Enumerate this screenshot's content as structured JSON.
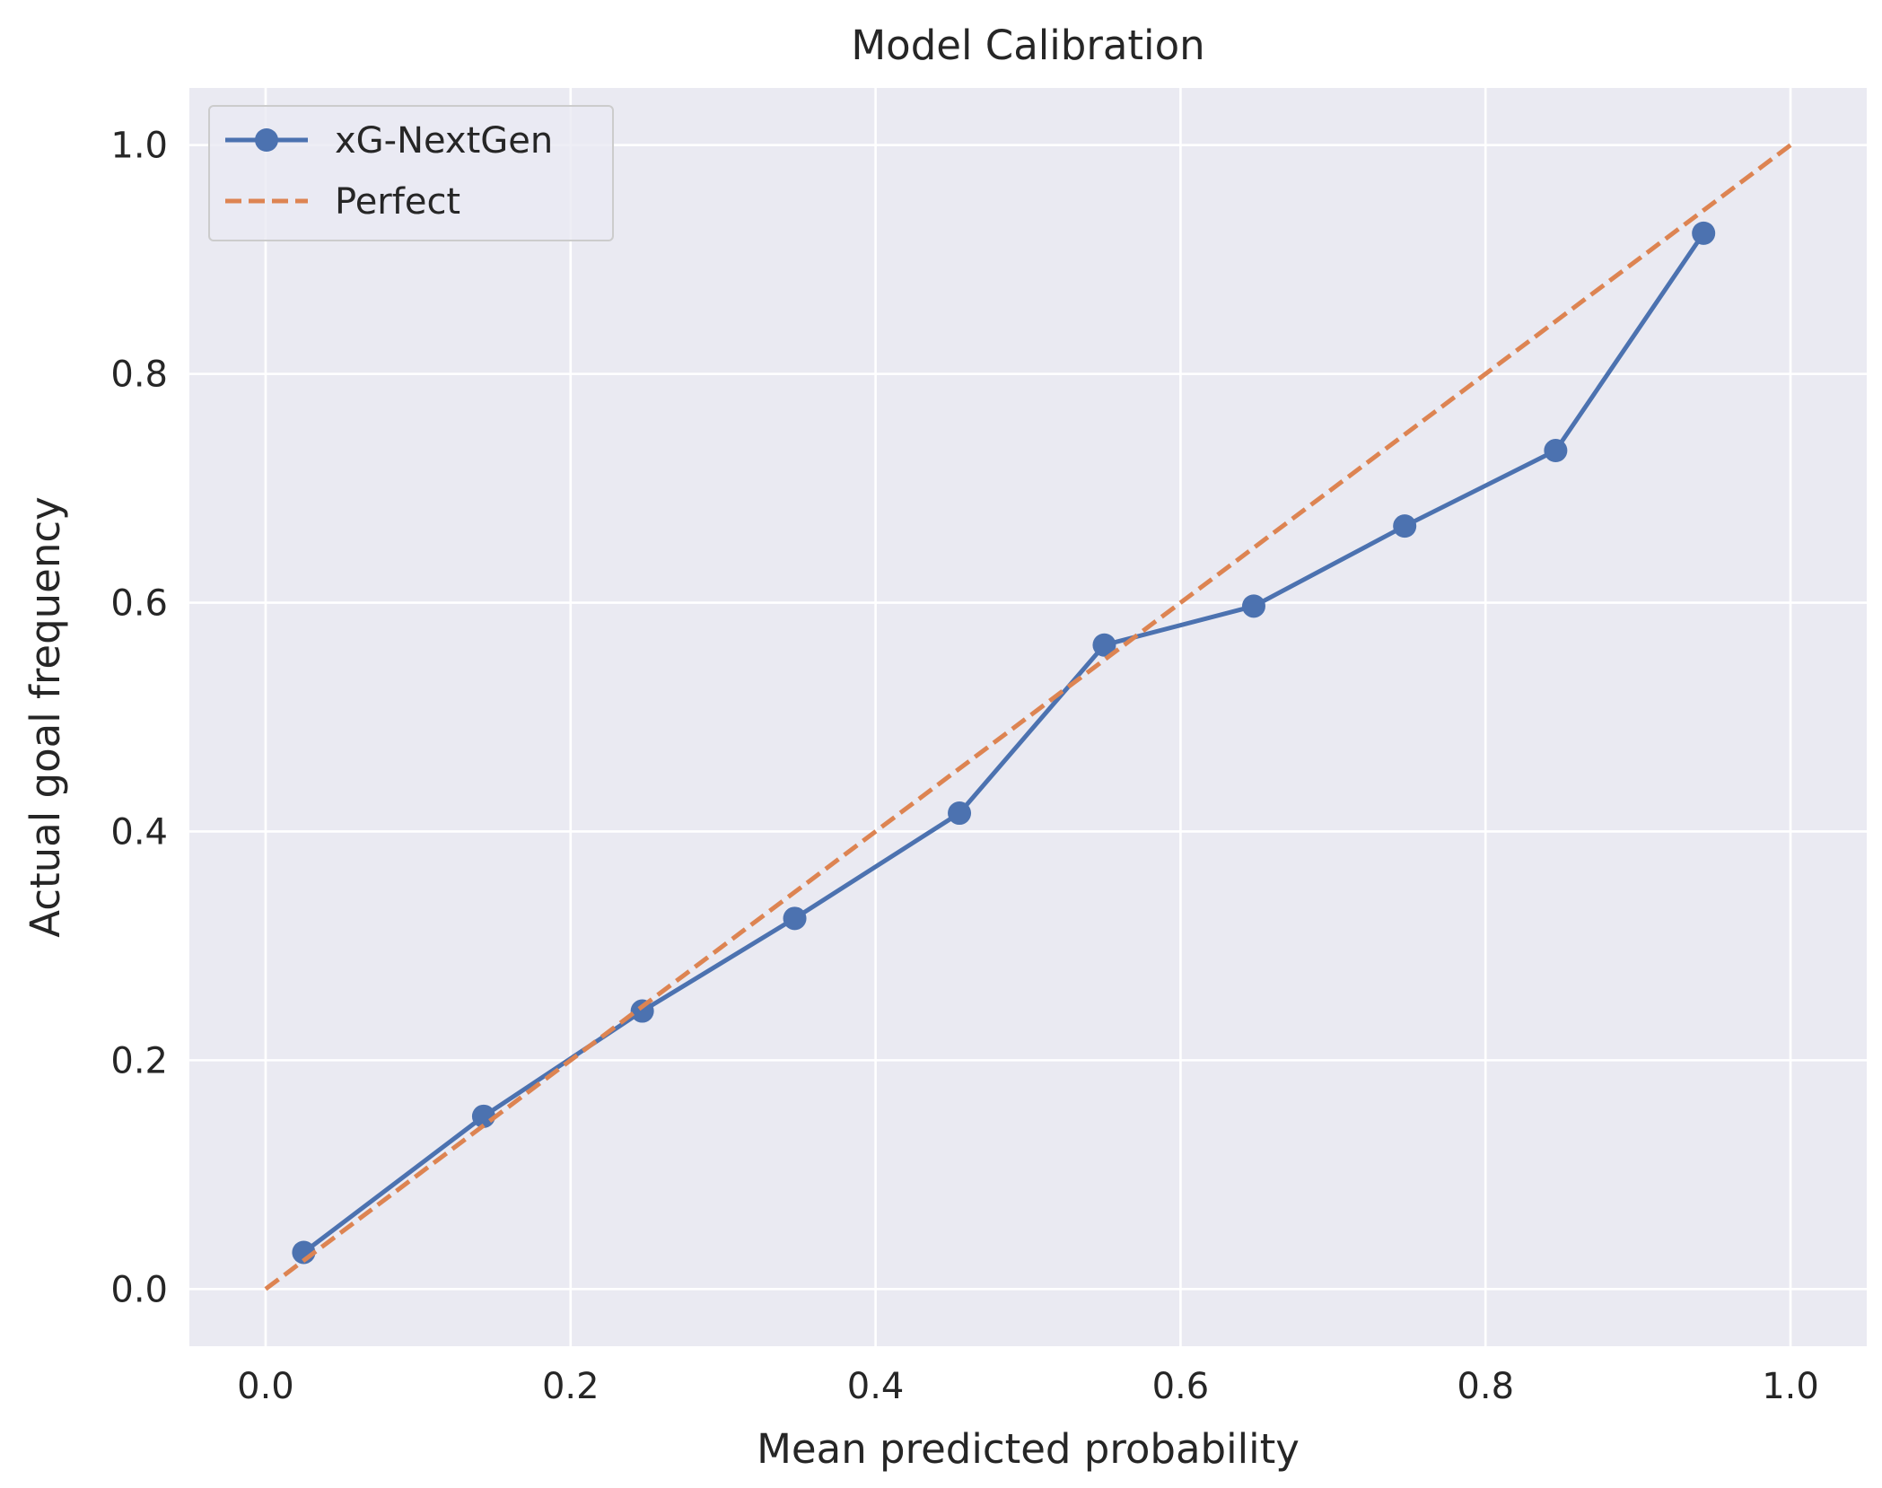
{
  "chart_data": {
    "type": "line",
    "title": "Model Calibration",
    "xlabel": "Mean predicted probability",
    "ylabel": "Actual goal frequency",
    "xlim": [
      -0.05,
      1.05
    ],
    "ylim": [
      -0.05,
      1.05
    ],
    "xticks": [
      "0.0",
      "0.2",
      "0.4",
      "0.6",
      "0.8",
      "1.0"
    ],
    "yticks": [
      "0.0",
      "0.2",
      "0.4",
      "0.6",
      "0.8",
      "1.0"
    ],
    "grid": true,
    "legend_position": "top-left",
    "series": [
      {
        "name": "xG-NextGen",
        "color": "#4c72b0",
        "style": "solid",
        "marker": "circle",
        "x": [
          0.025,
          0.143,
          0.247,
          0.347,
          0.455,
          0.55,
          0.648,
          0.747,
          0.846,
          0.943
        ],
        "y": [
          0.032,
          0.151,
          0.243,
          0.324,
          0.416,
          0.563,
          0.597,
          0.667,
          0.733,
          0.923
        ]
      },
      {
        "name": "Perfect",
        "color": "#dd8452",
        "style": "dashed",
        "marker": "none",
        "x": [
          0,
          1
        ],
        "y": [
          0,
          1
        ]
      }
    ],
    "colors": {
      "plot_background": "#eaeaf2",
      "grid": "#ffffff",
      "text": "#262626"
    }
  }
}
